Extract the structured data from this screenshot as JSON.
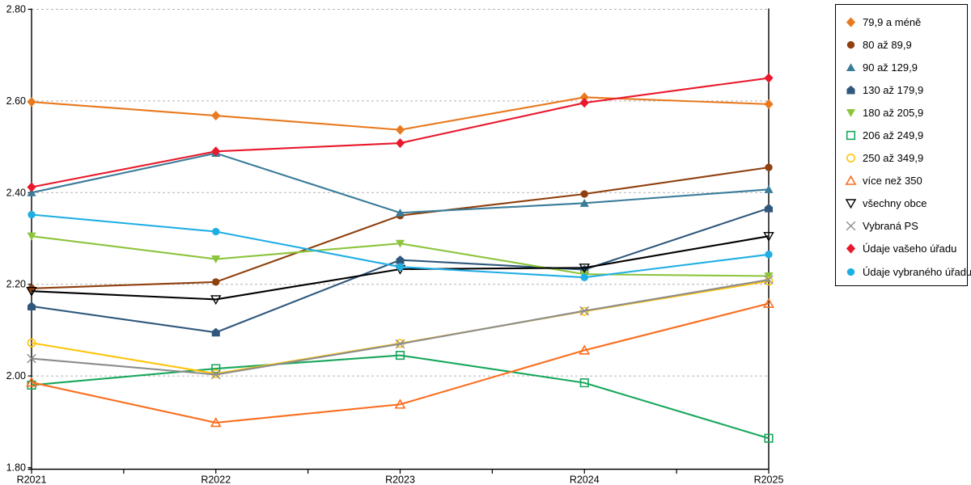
{
  "chart_data": {
    "type": "line",
    "title": "",
    "xlabel": "",
    "ylabel": "",
    "categories": [
      "R2021",
      "R2022",
      "R2023",
      "R2024",
      "R2025"
    ],
    "ylim": [
      1.8,
      2.8
    ],
    "y_tick_labels": [
      "2.80",
      "2.60",
      "2.40",
      "2.20",
      "2.00",
      "1.80"
    ],
    "y_tick_values": [
      2.8,
      2.6,
      2.4,
      2.2,
      2.0,
      1.8
    ],
    "grid": "horizontal-dashed",
    "legend_position": "right",
    "series": [
      {
        "name": "79,9 a méně",
        "marker": "diamond",
        "color": "#E8791E",
        "values": [
          2.598,
          2.568,
          2.537,
          2.608,
          2.593
        ]
      },
      {
        "name": "80 až 89,9",
        "marker": "circle",
        "color": "#8F400E",
        "values": [
          2.191,
          2.205,
          2.35,
          2.397,
          2.455
        ]
      },
      {
        "name": "90 až 129,9",
        "marker": "triangle-up",
        "color": "#3A7C99",
        "values": [
          2.4,
          2.486,
          2.356,
          2.377,
          2.407
        ]
      },
      {
        "name": "130 až 179,9",
        "marker": "pentagon",
        "color": "#30587C",
        "values": [
          2.152,
          2.095,
          2.253,
          2.232,
          2.366
        ]
      },
      {
        "name": "180 až 205,9",
        "marker": "triangle-down",
        "color": "#8CC43C",
        "values": [
          2.305,
          2.255,
          2.289,
          2.222,
          2.218
        ]
      },
      {
        "name": "206 až 249,9",
        "marker": "square-open",
        "color": "#18A75C",
        "values": [
          1.98,
          2.016,
          2.045,
          1.985,
          1.864
        ]
      },
      {
        "name": "250 až 349,9",
        "marker": "circle-open",
        "color": "#FFC408",
        "values": [
          2.072,
          2.005,
          2.071,
          2.141,
          2.207
        ]
      },
      {
        "name": "více než 350",
        "marker": "triangle-up-open",
        "color": "#FA6E1E",
        "values": [
          1.986,
          1.898,
          1.938,
          2.056,
          2.158
        ]
      },
      {
        "name": "všechny obce",
        "marker": "triangle-down-open",
        "color": "#000000",
        "values": [
          2.185,
          2.167,
          2.233,
          2.236,
          2.305
        ]
      },
      {
        "name": "Vybraná PS",
        "marker": "x",
        "color": "#8C8C8C",
        "values": [
          2.038,
          2.003,
          2.07,
          2.142,
          2.21
        ]
      },
      {
        "name": "Údaje vašeho úřadu",
        "marker": "diamond",
        "color": "#E8192C",
        "values": [
          2.412,
          2.49,
          2.508,
          2.596,
          2.65
        ]
      },
      {
        "name": "Údaje vybraného úřadu",
        "marker": "circle",
        "color": "#1FAEE4",
        "values": [
          2.352,
          2.315,
          2.238,
          2.215,
          2.265
        ]
      }
    ],
    "colors": {
      "axis": "#000000",
      "gridline": "#B3B3B3",
      "tick_label": "#000000",
      "background": "#FFFFFF"
    }
  }
}
